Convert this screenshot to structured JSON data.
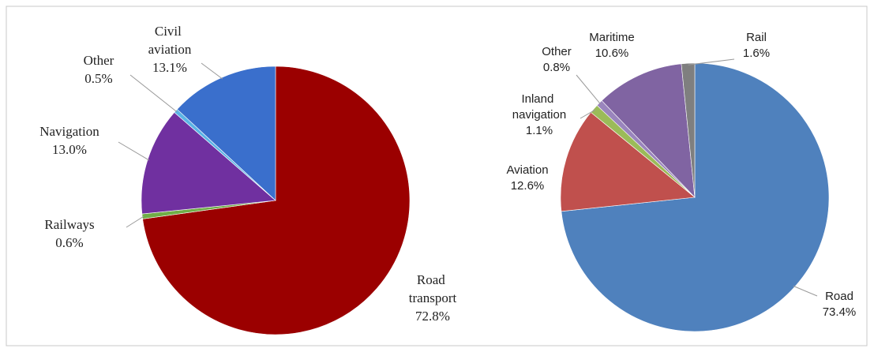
{
  "chart_data": [
    {
      "type": "pie",
      "categories": [
        "Road transport",
        "Railways",
        "Navigation",
        "Other",
        "Civil aviation"
      ],
      "values": [
        72.8,
        0.6,
        13.0,
        0.5,
        13.1
      ],
      "value_labels": [
        "72.8%",
        "0.6%",
        "13.0%",
        "0.5%",
        "13.1%"
      ],
      "colors": [
        "#9b0000",
        "#70ad47",
        "#7030a0",
        "#5bb4e5",
        "#3a6fcc"
      ]
    },
    {
      "type": "pie",
      "categories": [
        "Road",
        "Aviation",
        "Inland navigation",
        "Other",
        "Maritime",
        "Rail"
      ],
      "values": [
        73.4,
        12.6,
        1.1,
        0.8,
        10.6,
        1.6
      ],
      "value_labels": [
        "73.4%",
        "12.6%",
        "1.1%",
        "0.8%",
        "10.6%",
        "1.6%"
      ],
      "colors": [
        "#4f81bd",
        "#c0504d",
        "#9bbb59",
        "#9a85bd",
        "#8064a2",
        "#7f7f7f"
      ]
    }
  ]
}
